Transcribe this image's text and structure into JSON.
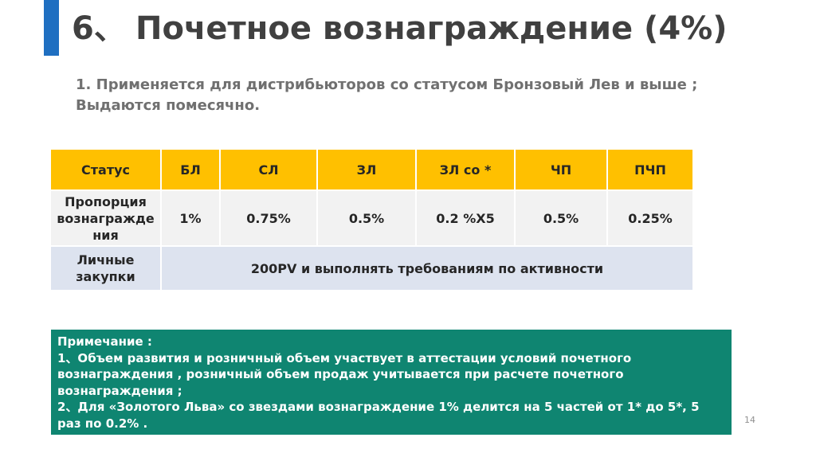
{
  "slide": {
    "title_number": "6、",
    "title_text": "Почетное вознаграждение (4%)",
    "subtitle_line1": "1. Применяется для дистрибьюторов со статусом Бронзовый Лев и выше ;",
    "subtitle_line2": "Выдаются помесячно.",
    "page_number": "14",
    "accent_color": "#1f6fc1"
  },
  "table": {
    "header": [
      "Статус",
      "БЛ",
      "СЛ",
      "ЗЛ",
      "ЗЛ со *",
      "ЧП",
      "ПЧП"
    ],
    "ratio_label_lines": [
      "Пропорция",
      "вознагражде",
      "ния"
    ],
    "ratio_values": [
      "1%",
      "0.75%",
      "0.5%",
      "0.2 %X5",
      "0.5%",
      "0.25%"
    ],
    "purchase_label_lines": [
      "Личные",
      "закупки"
    ],
    "purchase_value": "200PV и выполнять требованиям по активности",
    "colors": {
      "header": "#ffc000",
      "ratio_row": "#f2f2f2",
      "purchase_row": "#dde3ef"
    }
  },
  "note": {
    "lines": [
      "Примечание :",
      "1、Объем развития и розничный объем участвует в аттестации условий почетного",
      "вознаграждения , розничный объем продаж учитывается при расчете почетного",
      "вознаграждения  ;",
      "2、Для «Золотого Льва» со звездами вознаграждение 1% делится на 5 частей от 1* до 5*, 5",
      "раз по 0.2% ."
    ],
    "background": "#0f8571"
  }
}
